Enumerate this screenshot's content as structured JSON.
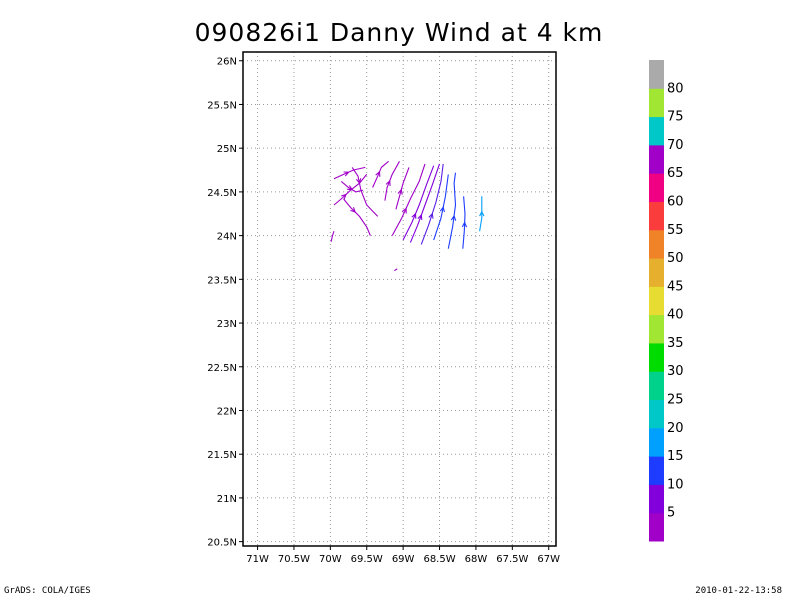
{
  "title": "090826i1 Danny Wind at 4 km",
  "footer": {
    "left": "GrADS: COLA/IGES",
    "right": "2010-01-22-13:58"
  },
  "chart_data": {
    "type": "streamline",
    "title": "090826i1 Danny Wind at 4 km",
    "xlabel": "",
    "ylabel": "",
    "xlim": [
      -71.2,
      -66.9
    ],
    "ylim": [
      20.45,
      26.1
    ],
    "grid": true,
    "x_ticks": [
      {
        "value": -71,
        "label": "71W"
      },
      {
        "value": -70.5,
        "label": "70.5W"
      },
      {
        "value": -70,
        "label": "70W"
      },
      {
        "value": -69.5,
        "label": "69.5W"
      },
      {
        "value": -69,
        "label": "69W"
      },
      {
        "value": -68.5,
        "label": "68.5W"
      },
      {
        "value": -68,
        "label": "68W"
      },
      {
        "value": -67.5,
        "label": "67.5W"
      },
      {
        "value": -67,
        "label": "67W"
      }
    ],
    "y_ticks": [
      {
        "value": 20.5,
        "label": "20.5N"
      },
      {
        "value": 21,
        "label": "21N"
      },
      {
        "value": 21.5,
        "label": "21.5N"
      },
      {
        "value": 22,
        "label": "22N"
      },
      {
        "value": 22.5,
        "label": "22.5N"
      },
      {
        "value": 23,
        "label": "23N"
      },
      {
        "value": 23.5,
        "label": "23.5N"
      },
      {
        "value": 24,
        "label": "24N"
      },
      {
        "value": 24.5,
        "label": "24.5N"
      },
      {
        "value": 25,
        "label": "25N"
      },
      {
        "value": 25.5,
        "label": "25.5N"
      },
      {
        "value": 26,
        "label": "26N"
      }
    ],
    "colorbar": {
      "colors": [
        "#a000c8",
        "#8200dc",
        "#1e3cff",
        "#00a0ff",
        "#00c8c8",
        "#00d28c",
        "#00dc00",
        "#a0e632",
        "#e6dc32",
        "#e6af2d",
        "#f08228",
        "#fa3c3c",
        "#f00082",
        "#a000c8",
        "#00c8c8",
        "#a0e632",
        "#aaaaaa"
      ],
      "labels": [
        "5",
        "10",
        "15",
        "20",
        "25",
        "30",
        "35",
        "40",
        "45",
        "50",
        "55",
        "60",
        "65",
        "70",
        "75",
        "80"
      ]
    },
    "streamlines": [
      {
        "color": "#a000c8",
        "points": [
          [
            -69.95,
            24.35
          ],
          [
            -69.85,
            24.42
          ],
          [
            -69.72,
            24.52
          ],
          [
            -69.6,
            24.6
          ],
          [
            -69.5,
            24.7
          ]
        ],
        "arrow": true
      },
      {
        "color": "#a000c8",
        "points": [
          [
            -69.95,
            24.65
          ],
          [
            -69.82,
            24.7
          ],
          [
            -69.68,
            24.75
          ],
          [
            -69.52,
            24.78
          ]
        ],
        "arrow": true
      },
      {
        "color": "#a000c8",
        "points": [
          [
            -69.85,
            24.62
          ],
          [
            -69.75,
            24.55
          ],
          [
            -69.65,
            24.5
          ],
          [
            -69.55,
            24.52
          ]
        ],
        "arrow": true
      },
      {
        "color": "#a000c8",
        "points": [
          [
            -69.7,
            24.78
          ],
          [
            -69.62,
            24.68
          ],
          [
            -69.58,
            24.52
          ],
          [
            -69.5,
            24.35
          ],
          [
            -69.35,
            24.22
          ]
        ],
        "arrow": true
      },
      {
        "color": "#a000c8",
        "points": [
          [
            -69.82,
            24.42
          ],
          [
            -69.72,
            24.32
          ],
          [
            -69.6,
            24.22
          ],
          [
            -69.5,
            24.1
          ],
          [
            -69.45,
            24.0
          ]
        ],
        "arrow": true
      },
      {
        "color": "#a000c8",
        "points": [
          [
            -69.42,
            24.55
          ],
          [
            -69.35,
            24.68
          ],
          [
            -69.3,
            24.78
          ],
          [
            -69.2,
            24.85
          ]
        ],
        "arrow": true
      },
      {
        "color": "#a000c8",
        "points": [
          [
            -69.25,
            24.4
          ],
          [
            -69.22,
            24.55
          ],
          [
            -69.15,
            24.7
          ],
          [
            -69.05,
            24.85
          ]
        ],
        "arrow": true
      },
      {
        "color": "#a000c8",
        "points": [
          [
            -69.1,
            24.3
          ],
          [
            -69.05,
            24.45
          ],
          [
            -69.0,
            24.6
          ],
          [
            -68.92,
            24.78
          ]
        ],
        "arrow": true
      },
      {
        "color": "#a000c8",
        "points": [
          [
            -69.15,
            24.0
          ],
          [
            -69.02,
            24.2
          ],
          [
            -68.9,
            24.42
          ],
          [
            -68.78,
            24.62
          ],
          [
            -68.7,
            24.82
          ]
        ],
        "arrow": true
      },
      {
        "color": "#8200dc",
        "points": [
          [
            -69.0,
            23.95
          ],
          [
            -68.88,
            24.15
          ],
          [
            -68.78,
            24.35
          ],
          [
            -68.68,
            24.58
          ],
          [
            -68.58,
            24.8
          ]
        ],
        "arrow": true
      },
      {
        "color": "#8200dc",
        "points": [
          [
            -68.9,
            23.92
          ],
          [
            -68.8,
            24.12
          ],
          [
            -68.7,
            24.35
          ],
          [
            -68.6,
            24.58
          ],
          [
            -68.5,
            24.82
          ]
        ],
        "arrow": true
      },
      {
        "color": "#5a1ee6",
        "points": [
          [
            -68.75,
            23.9
          ],
          [
            -68.65,
            24.12
          ],
          [
            -68.55,
            24.38
          ],
          [
            -68.48,
            24.62
          ],
          [
            -68.45,
            24.82
          ]
        ],
        "arrow": true
      },
      {
        "color": "#1e3cff",
        "points": [
          [
            -68.58,
            23.95
          ],
          [
            -68.48,
            24.2
          ],
          [
            -68.42,
            24.45
          ],
          [
            -68.38,
            24.7
          ]
        ],
        "arrow": true
      },
      {
        "color": "#1e3cff",
        "points": [
          [
            -68.38,
            23.85
          ],
          [
            -68.32,
            24.1
          ],
          [
            -68.28,
            24.35
          ],
          [
            -68.3,
            24.6
          ],
          [
            -68.28,
            24.72
          ]
        ],
        "arrow": true
      },
      {
        "color": "#1e3cff",
        "points": [
          [
            -68.18,
            23.85
          ],
          [
            -68.16,
            24.05
          ],
          [
            -68.15,
            24.25
          ],
          [
            -68.17,
            24.45
          ]
        ],
        "arrow": true
      },
      {
        "color": "#00a0ff",
        "points": [
          [
            -67.95,
            24.05
          ],
          [
            -67.92,
            24.2
          ],
          [
            -67.92,
            24.35
          ],
          [
            -67.92,
            24.45
          ]
        ],
        "arrow": true
      },
      {
        "color": "#a000c8",
        "points": [
          [
            -69.99,
            23.93
          ],
          [
            -69.97,
            24.0
          ],
          [
            -69.95,
            24.05
          ]
        ],
        "arrow": false
      },
      {
        "color": "#a000c8",
        "points": [
          [
            -69.12,
            23.6
          ],
          [
            -69.08,
            23.62
          ]
        ],
        "arrow": false
      }
    ]
  }
}
